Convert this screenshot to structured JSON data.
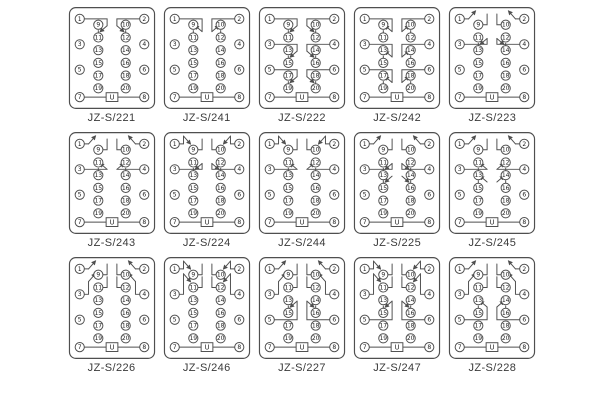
{
  "page": {
    "background": "#ffffff",
    "line_color": "#4f4f4f",
    "text_color": "#3a3a3a"
  },
  "socket": {
    "u_label": "U",
    "terminals": [
      "1",
      "2",
      "3",
      "4",
      "5",
      "6",
      "7",
      "8",
      "9",
      "10",
      "11",
      "12",
      "13",
      "14",
      "15",
      "16",
      "17",
      "18",
      "19",
      "20"
    ]
  },
  "models": [
    {
      "label": "JZ-S/221",
      "contacts": [
        {
          "type": "v",
          "a": 9,
          "b": 11,
          "feed": 1,
          "alt": false
        },
        {
          "type": "v",
          "a": 10,
          "b": 12,
          "feed": 2,
          "alt": false
        }
      ]
    },
    {
      "label": "JZ-S/241",
      "contacts": [
        {
          "type": "v",
          "a": 9,
          "b": 11,
          "feed": 1,
          "alt": true
        },
        {
          "type": "v",
          "a": 10,
          "b": 12,
          "feed": 2,
          "alt": true
        }
      ]
    },
    {
      "label": "JZ-S/222",
      "contacts": [
        {
          "type": "v",
          "a": 9,
          "b": 11,
          "feed": 1,
          "alt": false
        },
        {
          "type": "v",
          "a": 10,
          "b": 12,
          "feed": 2,
          "alt": false
        },
        {
          "type": "v",
          "a": 13,
          "b": 15,
          "feed": 3,
          "alt": false
        },
        {
          "type": "v",
          "a": 14,
          "b": 16,
          "feed": 4,
          "alt": false
        },
        {
          "type": "v",
          "a": 17,
          "b": 19,
          "feed": 5,
          "alt": false
        },
        {
          "type": "v",
          "a": 18,
          "b": 20,
          "feed": 6,
          "alt": false
        }
      ]
    },
    {
      "label": "JZ-S/242",
      "contacts": [
        {
          "type": "v",
          "a": 9,
          "b": 11,
          "feed": 1,
          "alt": true
        },
        {
          "type": "v",
          "a": 10,
          "b": 12,
          "feed": 2,
          "alt": true
        },
        {
          "type": "v",
          "a": 13,
          "b": 15,
          "feed": 3,
          "alt": true
        },
        {
          "type": "v",
          "a": 14,
          "b": 16,
          "feed": 4,
          "alt": true
        },
        {
          "type": "v",
          "a": 17,
          "b": 19,
          "feed": 5,
          "alt": true
        },
        {
          "type": "v",
          "a": 18,
          "b": 20,
          "feed": 6,
          "alt": true
        }
      ]
    },
    {
      "label": "JZ-S/223",
      "contacts": [
        {
          "type": "h",
          "s": 1,
          "t": 9,
          "alt": false
        },
        {
          "type": "h",
          "s": 2,
          "t": 10,
          "alt": false
        },
        {
          "type": "v",
          "a": 11,
          "b": 13,
          "feed": 3,
          "alt": false
        },
        {
          "type": "v",
          "a": 12,
          "b": 14,
          "feed": 4,
          "alt": false
        }
      ]
    },
    {
      "label": "JZ-S/243",
      "contacts": [
        {
          "type": "h",
          "s": 1,
          "t": 9,
          "alt": false
        },
        {
          "type": "h",
          "s": 2,
          "t": 10,
          "alt": false
        },
        {
          "type": "v",
          "a": 11,
          "b": 13,
          "feed": 3,
          "alt": true
        },
        {
          "type": "v",
          "a": 12,
          "b": 14,
          "feed": 4,
          "alt": true
        }
      ]
    },
    {
      "label": "JZ-S/224",
      "contacts": [
        {
          "type": "h",
          "s": 1,
          "t": 9,
          "alt": true
        },
        {
          "type": "h",
          "s": 2,
          "t": 10,
          "alt": true
        },
        {
          "type": "v",
          "a": 11,
          "b": 13,
          "feed": 3,
          "alt": false
        },
        {
          "type": "v",
          "a": 12,
          "b": 14,
          "feed": 4,
          "alt": false
        }
      ]
    },
    {
      "label": "JZ-S/244",
      "contacts": [
        {
          "type": "h",
          "s": 1,
          "t": 9,
          "alt": true
        },
        {
          "type": "h",
          "s": 2,
          "t": 10,
          "alt": true
        },
        {
          "type": "v",
          "a": 11,
          "b": 13,
          "feed": 3,
          "alt": true
        },
        {
          "type": "v",
          "a": 12,
          "b": 14,
          "feed": 4,
          "alt": true
        }
      ]
    },
    {
      "label": "JZ-S/225",
      "contacts": [
        {
          "type": "h",
          "s": 1,
          "t": 9,
          "alt": false
        },
        {
          "type": "h",
          "s": 2,
          "t": 10,
          "alt": false
        },
        {
          "type": "v",
          "a": 11,
          "b": 13,
          "feed": 3,
          "alt": false
        },
        {
          "type": "v",
          "a": 12,
          "b": 14,
          "feed": 4,
          "alt": false
        },
        {
          "type": "v",
          "a": 13,
          "b": 15,
          "feed": null,
          "alt": false
        },
        {
          "type": "v",
          "a": 14,
          "b": 16,
          "feed": null,
          "alt": false
        }
      ]
    },
    {
      "label": "JZ-S/245",
      "contacts": [
        {
          "type": "h",
          "s": 1,
          "t": 9,
          "alt": false
        },
        {
          "type": "h",
          "s": 2,
          "t": 10,
          "alt": false
        },
        {
          "type": "v",
          "a": 11,
          "b": 13,
          "feed": 3,
          "alt": true
        },
        {
          "type": "v",
          "a": 12,
          "b": 14,
          "feed": 4,
          "alt": true
        },
        {
          "type": "v",
          "a": 13,
          "b": 15,
          "feed": null,
          "alt": true
        },
        {
          "type": "v",
          "a": 14,
          "b": 16,
          "feed": null,
          "alt": true
        }
      ]
    },
    {
      "label": "JZ-S/226",
      "contacts": [
        {
          "type": "h",
          "s": 1,
          "t": 9,
          "alt": false
        },
        {
          "type": "h",
          "s": 2,
          "t": 10,
          "alt": false
        },
        {
          "type": "h",
          "s": 3,
          "t": 11,
          "alt": false
        },
        {
          "type": "h",
          "s": 4,
          "t": 12,
          "alt": false
        }
      ]
    },
    {
      "label": "JZ-S/246",
      "contacts": [
        {
          "type": "h",
          "s": 1,
          "t": 9,
          "alt": true
        },
        {
          "type": "h",
          "s": 2,
          "t": 10,
          "alt": true
        },
        {
          "type": "h",
          "s": 3,
          "t": 11,
          "alt": true
        },
        {
          "type": "h",
          "s": 4,
          "t": 12,
          "alt": true
        }
      ]
    },
    {
      "label": "JZ-S/227",
      "contacts": [
        {
          "type": "h",
          "s": 1,
          "t": 9,
          "alt": false
        },
        {
          "type": "h",
          "s": 2,
          "t": 10,
          "alt": false
        },
        {
          "type": "h",
          "s": 3,
          "t": 11,
          "alt": false
        },
        {
          "type": "h",
          "s": 4,
          "t": 12,
          "alt": false
        },
        {
          "type": "v",
          "a": 13,
          "b": 15,
          "feed": 5,
          "alt": false
        },
        {
          "type": "v",
          "a": 14,
          "b": 16,
          "feed": 6,
          "alt": false
        }
      ]
    },
    {
      "label": "JZ-S/247",
      "contacts": [
        {
          "type": "h",
          "s": 1,
          "t": 9,
          "alt": true
        },
        {
          "type": "h",
          "s": 2,
          "t": 10,
          "alt": true
        },
        {
          "type": "h",
          "s": 3,
          "t": 11,
          "alt": true
        },
        {
          "type": "h",
          "s": 4,
          "t": 12,
          "alt": true
        },
        {
          "type": "v",
          "a": 13,
          "b": 15,
          "feed": 5,
          "alt": false
        },
        {
          "type": "v",
          "a": 14,
          "b": 16,
          "feed": 6,
          "alt": false
        }
      ]
    },
    {
      "label": "JZ-S/228",
      "contacts": [
        {
          "type": "h",
          "s": 1,
          "t": 9,
          "alt": false
        },
        {
          "type": "h",
          "s": 2,
          "t": 10,
          "alt": false
        },
        {
          "type": "h",
          "s": 3,
          "t": 11,
          "alt": false
        },
        {
          "type": "h",
          "s": 4,
          "t": 12,
          "alt": false
        },
        {
          "type": "v",
          "a": 13,
          "b": 15,
          "feed": 5,
          "alt": true
        },
        {
          "type": "v",
          "a": 14,
          "b": 16,
          "feed": 6,
          "alt": true
        }
      ]
    }
  ]
}
